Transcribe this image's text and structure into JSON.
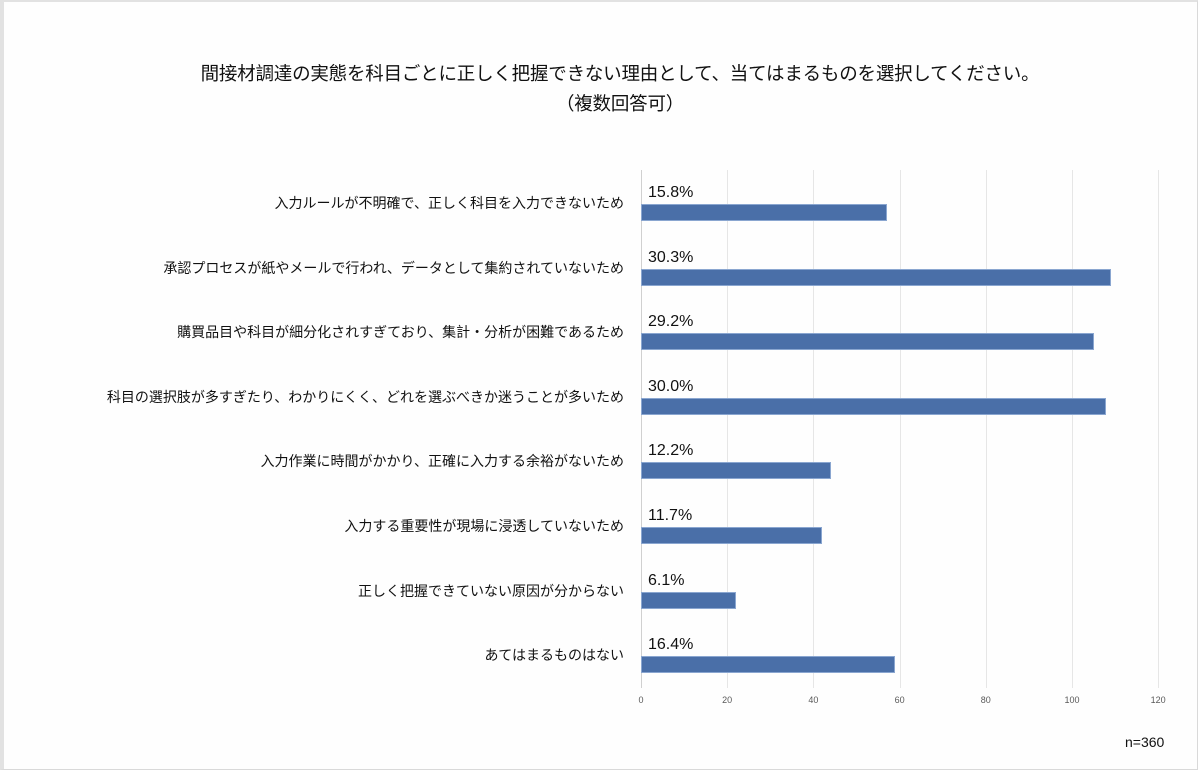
{
  "chart_data": {
    "type": "bar",
    "orientation": "horizontal",
    "title": "間接材調達の実態を科目ごとに正しく把握できない理由として、当てはまるものを選択してください。",
    "subtitle": "（複数回答可）",
    "xlabel": "",
    "ylabel": "",
    "xlim": [
      0,
      120
    ],
    "x_ticks": [
      "0",
      "20",
      "40",
      "60",
      "80",
      "100",
      "120"
    ],
    "grid": true,
    "legend": null,
    "sample_size": "n=360",
    "categories": [
      "入力ルールが不明確で、正しく科目を入力できないため",
      "承認プロセスが紙やメールで行われ、データとして集約されていないため",
      "購買品目や科目が細分化されすぎており、集計・分析が困難であるため",
      "科目の選択肢が多すぎたり、わかりにくく、どれを選ぶべきか迷うことが多いため",
      "入力作業に時間がかかり、正確に入力する余裕がないため",
      "入力する重要性が現場に浸透していないため",
      "正しく把握できていない原因が分からない",
      "あてはまるものはない"
    ],
    "values": [
      57,
      109,
      105,
      108,
      44,
      42,
      22,
      59
    ],
    "data_labels": [
      "15.8%",
      "30.3%",
      "29.2%",
      "30.0%",
      "12.2%",
      "11.7%",
      "6.1%",
      "16.4%"
    ],
    "bar_color": "#4a6fa8"
  },
  "title_line1": "間接材調達の実態を科目ごとに正しく把握できない理由として、当てはまるものを選択してください。",
  "title_line2": "（複数回答可）",
  "n_label": "n=360"
}
